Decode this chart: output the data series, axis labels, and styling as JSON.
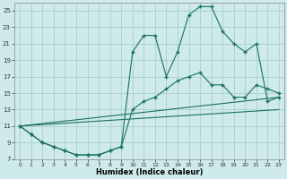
{
  "xlabel": "Humidex (Indice chaleur)",
  "bg_color": "#ceeaea",
  "grid_color": "#aacece",
  "line_color": "#1a7060",
  "xlim": [
    -0.5,
    23.5
  ],
  "ylim": [
    7,
    26
  ],
  "xticks": [
    0,
    1,
    2,
    3,
    4,
    5,
    6,
    7,
    8,
    9,
    10,
    11,
    12,
    13,
    14,
    15,
    16,
    17,
    18,
    19,
    20,
    21,
    22,
    23
  ],
  "yticks": [
    7,
    9,
    11,
    13,
    15,
    17,
    19,
    21,
    23,
    25
  ],
  "line1_x": [
    0,
    1,
    2,
    3,
    4,
    5,
    6,
    7,
    8,
    9,
    10,
    11,
    12,
    13,
    14,
    15,
    16,
    17,
    18,
    19,
    20,
    21,
    22,
    23
  ],
  "line1_y": [
    11,
    10,
    9,
    8.5,
    8,
    7.5,
    7.5,
    7.5,
    8,
    8.5,
    20,
    22,
    22,
    17,
    20,
    24.5,
    25.5,
    25.5,
    22.5,
    21,
    20,
    21,
    14,
    14.5
  ],
  "line2_x": [
    0,
    1,
    2,
    3,
    4,
    5,
    6,
    7,
    8,
    9,
    10,
    11,
    12,
    13,
    14,
    15,
    16,
    17,
    18,
    19,
    20,
    21,
    22,
    23
  ],
  "line2_y": [
    11,
    10,
    9,
    8.5,
    8,
    7.5,
    7.5,
    7.5,
    8,
    8.5,
    13,
    14,
    14.5,
    15.5,
    16.5,
    17,
    17.5,
    16,
    16,
    14.5,
    14.5,
    16,
    15.5,
    15
  ],
  "line3_x": [
    0,
    23
  ],
  "line3_y": [
    11,
    14.5
  ],
  "line4_x": [
    0,
    23
  ],
  "line4_y": [
    11,
    13
  ],
  "marker": "+"
}
